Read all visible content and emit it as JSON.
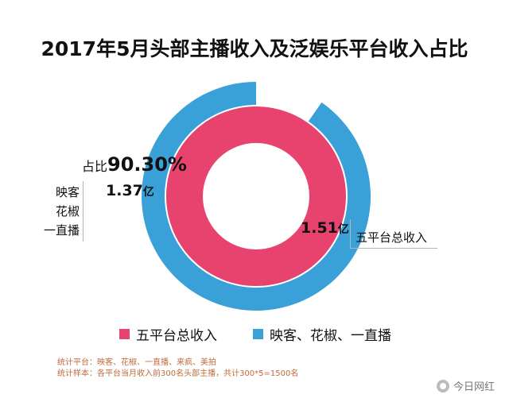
{
  "chart_data": {
    "type": "pie",
    "title": "2017年5月头部主播收入及泛娱乐平台收入占比",
    "categories": [
      "五平台总收入",
      "映客、花椒、一直播"
    ],
    "series": [
      {
        "name": "五平台总收入",
        "value": 1.51,
        "display": "1.51",
        "unit": "亿",
        "color": "#e8426e"
      },
      {
        "name": "映客、花椒、一直播",
        "value": 1.37,
        "display": "1.37",
        "unit": "亿",
        "color": "#3aa0d8",
        "share_prefix": "占比",
        "share": "90.30%",
        "label_lines": [
          "映客",
          "花椒",
          "一直播"
        ]
      }
    ],
    "share_of_outer_ring": 0.903,
    "legend_position": "bottom"
  },
  "notes": [
    "统计平台：映客、花椒、一直播、来疯、美拍",
    "统计样本：各平台当月收入前300名头部主播，共计300*5=1500名"
  ],
  "brand": "今日网红"
}
